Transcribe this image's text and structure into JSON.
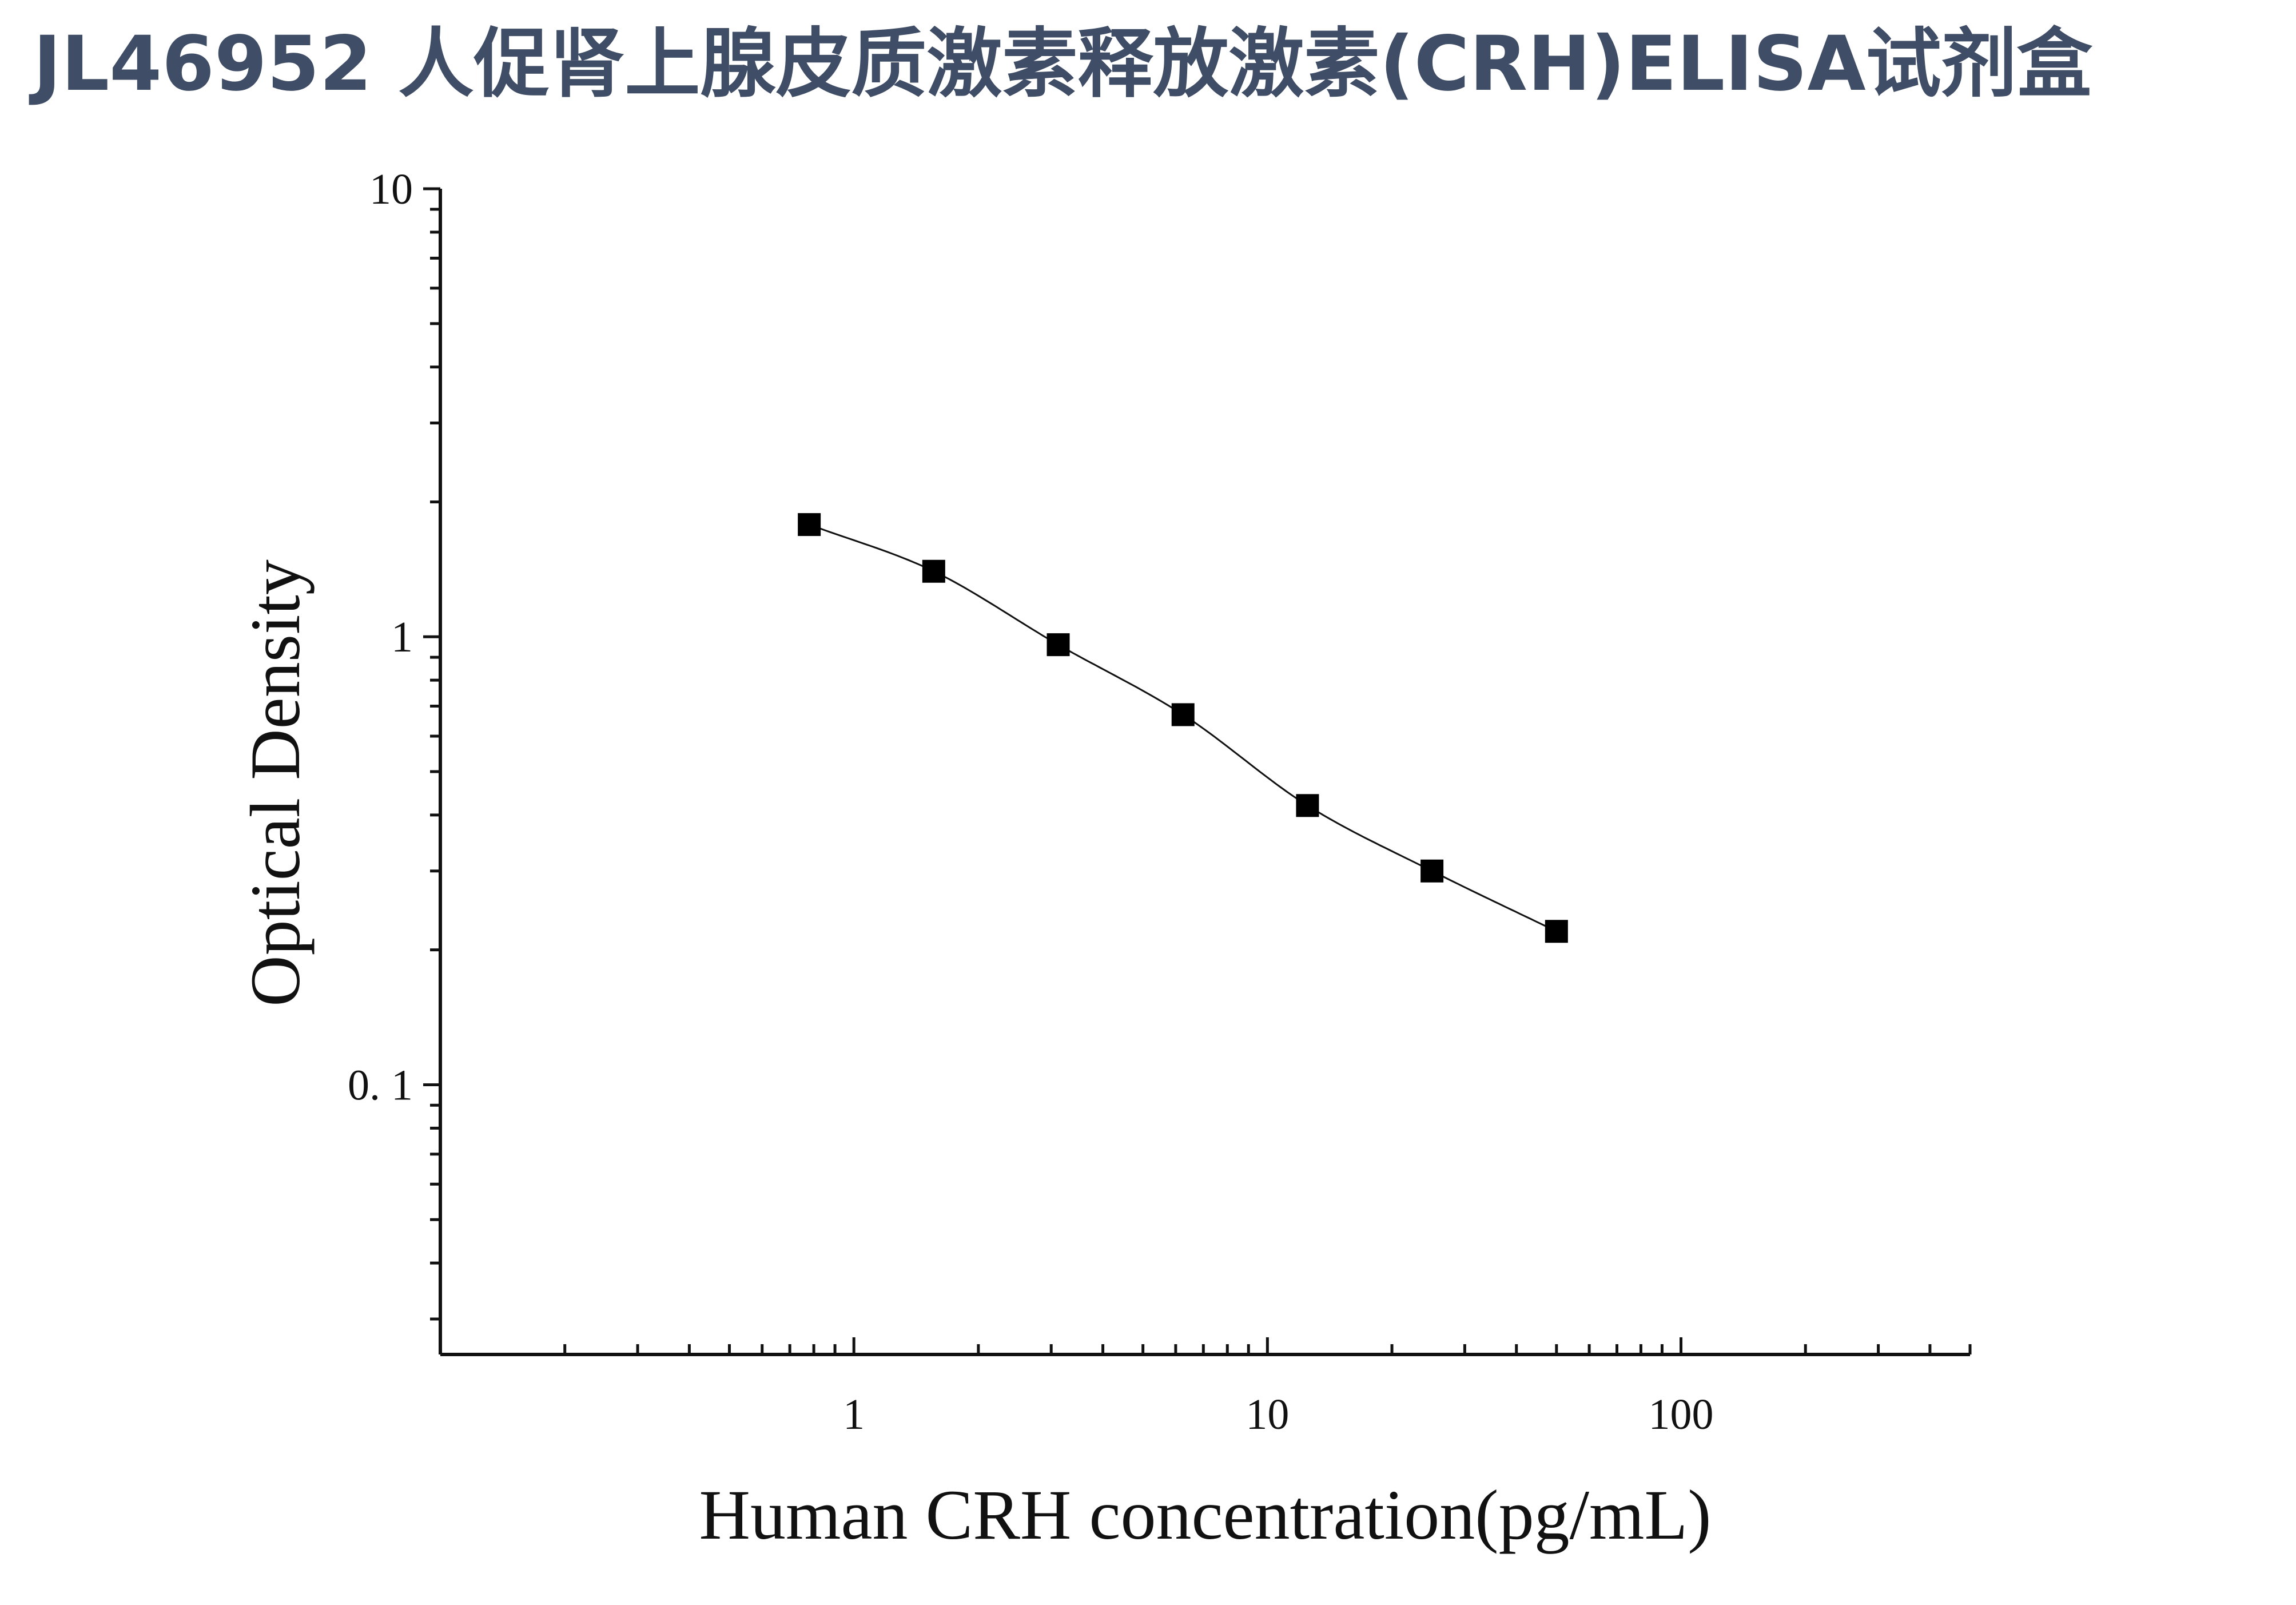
{
  "title": "JL46952 人促肾上腺皮质激素释放激素(CRH)ELISA试剂盒",
  "chart_data": {
    "type": "scatter",
    "xlabel": "Human CRH concentration(pg/mL)",
    "ylabel": "Optical Density",
    "x_scale": "log",
    "y_scale": "log",
    "xlim": [
      0.1,
      500
    ],
    "ylim": [
      0.025,
      10
    ],
    "x_ticks": [
      {
        "value": 1,
        "label": "1"
      },
      {
        "value": 10,
        "label": "10"
      },
      {
        "value": 100,
        "label": "100"
      }
    ],
    "y_ticks": [
      {
        "value": 10,
        "label": "10"
      },
      {
        "value": 1,
        "label": "1"
      },
      {
        "value": 0.1,
        "label": "0. 1"
      }
    ],
    "series": [
      {
        "marker": "square",
        "color": "#000000",
        "x": [
          0.78,
          1.56,
          3.12,
          6.25,
          12.5,
          25,
          50
        ],
        "y": [
          1.78,
          1.4,
          0.96,
          0.67,
          0.42,
          0.3,
          0.22
        ]
      }
    ],
    "fit_curve": true,
    "grid": false,
    "legend": "none"
  }
}
